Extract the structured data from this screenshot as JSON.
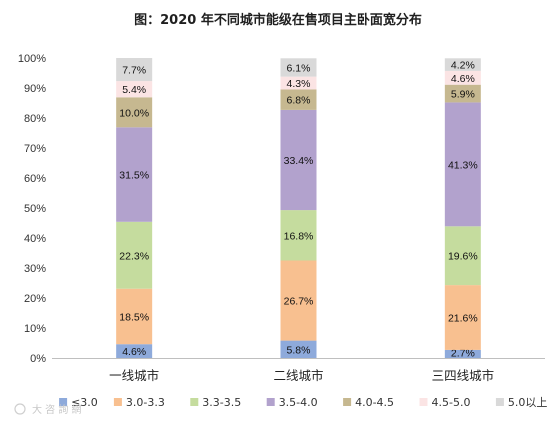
{
  "chart_data": {
    "type": "bar",
    "stacked": true,
    "title": "图：2020 年不同城市能级在售项目主卧面宽分布",
    "categories": [
      "一线城市",
      "二线城市",
      "三四线城市"
    ],
    "ylim": [
      0,
      100
    ],
    "y_ticks": [
      "0%",
      "10%",
      "20%",
      "30%",
      "40%",
      "50%",
      "60%",
      "70%",
      "80%",
      "90%",
      "100%"
    ],
    "grid": false,
    "legend_position": "bottom",
    "series": [
      {
        "name": "≤3.0",
        "color": "#8eaadb",
        "values": [
          4.6,
          5.8,
          2.7
        ],
        "labels": [
          "4.6%",
          "5.8%",
          "2.7%"
        ]
      },
      {
        "name": "3.0-3.3",
        "color": "#f8c090",
        "values": [
          18.5,
          26.7,
          21.6
        ],
        "labels": [
          "18.5%",
          "26.7%",
          "21.6%"
        ]
      },
      {
        "name": "3.3-3.5",
        "color": "#c5dc9e",
        "values": [
          22.3,
          16.8,
          19.6
        ],
        "labels": [
          "22.3%",
          "16.8%",
          "19.6%"
        ]
      },
      {
        "name": "3.5-4.0",
        "color": "#b2a2cd",
        "values": [
          31.5,
          33.4,
          41.3
        ],
        "labels": [
          "31.5%",
          "33.4%",
          "41.3%"
        ]
      },
      {
        "name": "4.0-4.5",
        "color": "#c6b890",
        "values": [
          10.0,
          6.8,
          5.9
        ],
        "labels": [
          "10.0%",
          "6.8%",
          "5.9%"
        ]
      },
      {
        "name": "4.5-5.0",
        "color": "#fbe4e4",
        "values": [
          5.4,
          4.3,
          4.6
        ],
        "labels": [
          "5.4%",
          "4.3%",
          "4.6%"
        ]
      },
      {
        "name": "5.0以上",
        "color": "#d9d9d9",
        "values": [
          7.7,
          6.1,
          4.2
        ],
        "labels": [
          "7.7%",
          "6.1%",
          "4.2%"
        ]
      }
    ]
  },
  "watermark": "大 咨 詢 網"
}
